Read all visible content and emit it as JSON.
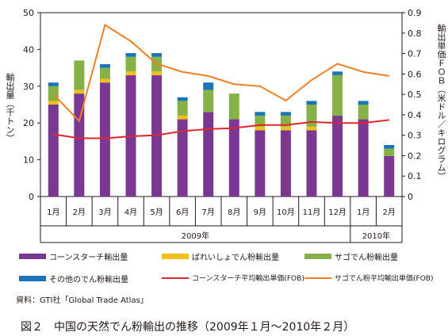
{
  "chart_data": {
    "type": "bar",
    "categories": [
      "1月",
      "2月",
      "3月",
      "4月",
      "5月",
      "6月",
      "7月",
      "8月",
      "9月",
      "10月",
      "11月",
      "12月",
      "1月",
      "2月"
    ],
    "year_groups": [
      {
        "label": "2009年",
        "from": 0,
        "to": 11
      },
      {
        "label": "2010年",
        "from": 12,
        "to": 13
      }
    ],
    "series": [
      {
        "name": "コーンスターチ輸出量",
        "type": "bar",
        "axis": "left",
        "color": "#7b3893",
        "values": [
          25,
          28,
          31,
          33,
          33,
          21,
          23,
          21,
          18,
          18,
          18,
          22,
          21,
          11
        ]
      },
      {
        "name": "ばれいしょでん粉輸出量",
        "type": "bar",
        "axis": "left",
        "color": "#f2be1a",
        "values": [
          1,
          1,
          1,
          1,
          1,
          1,
          0,
          0,
          1,
          1,
          1,
          0,
          0,
          0
        ]
      },
      {
        "name": "サゴでん粉輸出量",
        "type": "bar",
        "axis": "left",
        "color": "#86b146",
        "values": [
          4,
          8,
          3,
          4,
          4,
          4,
          6,
          7,
          3,
          3,
          6,
          11,
          4,
          2
        ]
      },
      {
        "name": "その他のでん粉輸出量",
        "type": "bar",
        "axis": "left",
        "color": "#1b73b9",
        "values": [
          1,
          0,
          1,
          1,
          1,
          1,
          2,
          0,
          1,
          1,
          1,
          1,
          1,
          1
        ]
      },
      {
        "name": "コーンスターチ平均輸出単価(FOB)",
        "type": "line",
        "axis": "right",
        "color": "#e0262a",
        "values": [
          0.305,
          0.285,
          0.285,
          0.295,
          0.3,
          0.32,
          0.33,
          0.335,
          0.35,
          0.35,
          0.365,
          0.36,
          0.36,
          0.375
        ]
      },
      {
        "name": "サゴでん粉平均輸出単価(FOB)",
        "type": "line",
        "axis": "right",
        "color": "#ee7f22",
        "values": [
          0.5,
          0.37,
          0.84,
          0.76,
          0.65,
          0.61,
          0.59,
          0.55,
          0.54,
          0.47,
          0.57,
          0.65,
          0.61,
          0.59
        ]
      }
    ],
    "ylim": [
      0,
      50
    ],
    "yticks": [
      "0",
      "10",
      "20",
      "30",
      "40",
      "50"
    ],
    "y2lim": [
      0,
      0.9
    ],
    "y2ticks": [
      "0",
      "0.1",
      "0.2",
      "0.3",
      "0.4",
      "0.5",
      "0.6",
      "0.7",
      "0.8",
      "0.9"
    ],
    "ylabel": "輸出量（千トン）",
    "y2label": "輸出単価ＦＯＢ（米ドル／キログラム）",
    "legend_placement": "bottom"
  },
  "source": "資料：GTI社「Global Trade Atlas」",
  "caption": "図２　中国の天然でん粉輸出の推移（2009年１月～2010年２月）"
}
